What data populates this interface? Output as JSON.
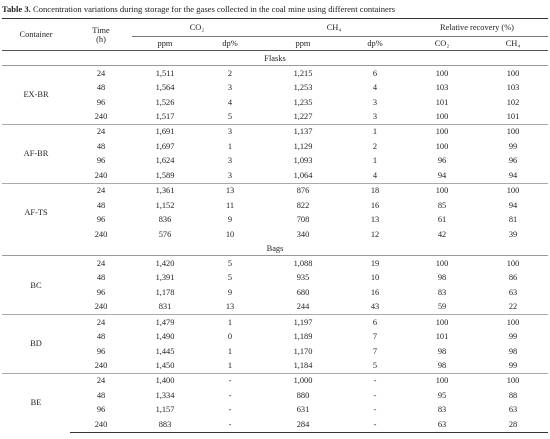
{
  "caption": {
    "label": "Table 3.",
    "text": "Concentration variations during storage for the gases collected in the coal mine using different containers"
  },
  "header": {
    "container": "Container",
    "time": "Time",
    "time_unit": "(h)",
    "co2": "CO₂",
    "ch4": "CH₄",
    "recovery": "Relative recovery (%)",
    "sub": [
      "ppm",
      "dp%",
      "ppm",
      "dp%",
      "CO₂",
      "CH₄"
    ]
  },
  "sections": [
    {
      "title": "Flasks",
      "groups": [
        {
          "container": "EX-BR",
          "rows": [
            [
              "24",
              "1,511",
              "2",
              "1,215",
              "6",
              "100",
              "100"
            ],
            [
              "48",
              "1,564",
              "3",
              "1,253",
              "4",
              "103",
              "103"
            ],
            [
              "96",
              "1,526",
              "4",
              "1,235",
              "3",
              "101",
              "102"
            ],
            [
              "240",
              "1,517",
              "5",
              "1,227",
              "3",
              "100",
              "101"
            ]
          ]
        },
        {
          "container": "AF-BR",
          "rows": [
            [
              "24",
              "1,691",
              "3",
              "1,137",
              "1",
              "100",
              "100"
            ],
            [
              "48",
              "1,697",
              "1",
              "1,129",
              "2",
              "100",
              "99"
            ],
            [
              "96",
              "1,624",
              "3",
              "1,093",
              "1",
              "96",
              "96"
            ],
            [
              "240",
              "1,589",
              "3",
              "1,064",
              "4",
              "94",
              "94"
            ]
          ]
        },
        {
          "container": "AF-TS",
          "rows": [
            [
              "24",
              "1,361",
              "13",
              "876",
              "18",
              "100",
              "100"
            ],
            [
              "48",
              "1,152",
              "11",
              "822",
              "16",
              "85",
              "94"
            ],
            [
              "96",
              "836",
              "9",
              "708",
              "13",
              "61",
              "81"
            ],
            [
              "240",
              "576",
              "10",
              "340",
              "12",
              "42",
              "39"
            ]
          ]
        }
      ]
    },
    {
      "title": "Bags",
      "groups": [
        {
          "container": "BC",
          "rows": [
            [
              "24",
              "1,420",
              "5",
              "1,088",
              "19",
              "100",
              "100"
            ],
            [
              "48",
              "1,391",
              "5",
              "935",
              "10",
              "98",
              "86"
            ],
            [
              "96",
              "1,178",
              "9",
              "680",
              "16",
              "83",
              "63"
            ],
            [
              "240",
              "831",
              "13",
              "244",
              "43",
              "59",
              "22"
            ]
          ]
        },
        {
          "container": "BD",
          "rows": [
            [
              "24",
              "1,479",
              "1",
              "1,197",
              "6",
              "100",
              "100"
            ],
            [
              "48",
              "1,490",
              "0",
              "1,189",
              "7",
              "101",
              "99"
            ],
            [
              "96",
              "1,445",
              "1",
              "1,170",
              "7",
              "98",
              "98"
            ],
            [
              "240",
              "1,450",
              "1",
              "1,184",
              "5",
              "98",
              "99"
            ]
          ]
        },
        {
          "container": "BE",
          "rows": [
            [
              "24",
              "1,400",
              "-",
              "1,000",
              "-",
              "100",
              "100"
            ],
            [
              "48",
              "1,334",
              "-",
              "880",
              "-",
              "95",
              "88"
            ],
            [
              "96",
              "1,157",
              "-",
              "631",
              "-",
              "83",
              "63"
            ],
            [
              "240",
              "883",
              "-",
              "284",
              "-",
              "63",
              "28"
            ]
          ]
        }
      ]
    }
  ]
}
